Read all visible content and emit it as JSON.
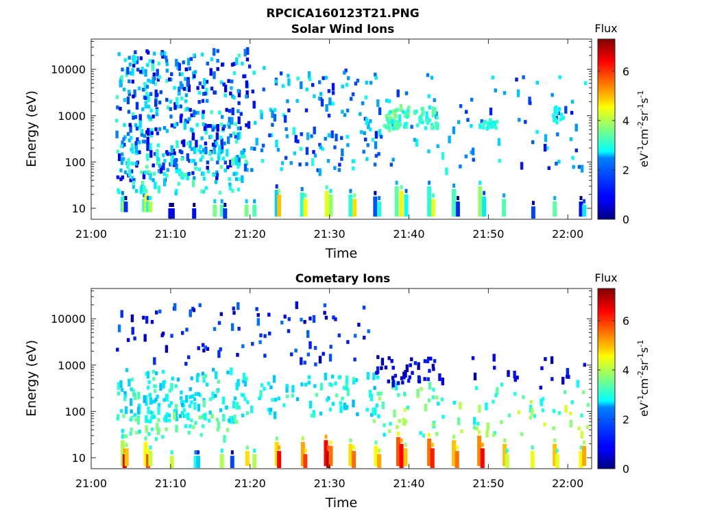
{
  "figure_title": "RPCICA160123T21.PNG",
  "chart_data": [
    {
      "type": "heatmap",
      "title": "Solar Wind Ions",
      "xlabel": "Time",
      "ylabel": "Energy (eV)",
      "x_tick_labels": [
        "21:00",
        "21:10",
        "21:20",
        "21:30",
        "21:40",
        "21:50",
        "22:00"
      ],
      "x_ticks_min": [
        0,
        10,
        20,
        30,
        40,
        50,
        60
      ],
      "xlim_min": [
        0,
        63
      ],
      "yscale": "log",
      "y_tick_labels": [
        "10",
        "100",
        "1000",
        "10000"
      ],
      "y_ticks": [
        10,
        100,
        1000,
        10000
      ],
      "ylim": [
        5.8,
        45000
      ],
      "colorbar": {
        "title": "Flux",
        "label": "eV-1cm-2sr-1s-1",
        "range": [
          0,
          7.3
        ],
        "ticks": [
          "0",
          "2",
          "4",
          "6"
        ],
        "colormap": "jet"
      },
      "background": "#ffffff",
      "columns": [
        {
          "t": 3.7,
          "e": [
            10,
            18
          ],
          "v": 3.0
        },
        {
          "t": 3.9,
          "e": [
            10,
            14
          ],
          "v": 4.2
        },
        {
          "t": 4.1,
          "e": [
            10,
            14
          ],
          "v": 1.2
        },
        {
          "t": 6.4,
          "e": [
            10,
            16
          ],
          "v": 3.2
        },
        {
          "t": 6.7,
          "e": [
            10,
            20
          ],
          "v": 4.5
        },
        {
          "t": 6.9,
          "e": [
            10,
            14
          ],
          "v": 2.8
        },
        {
          "t": 7.2,
          "e": [
            10,
            14
          ],
          "v": 4.0
        },
        {
          "t": 9.7,
          "e": [
            7,
            10
          ],
          "v": 1.0
        },
        {
          "t": 10.0,
          "e": [
            7,
            10
          ],
          "v": 0.9
        },
        {
          "t": 12.7,
          "e": [
            7,
            10
          ],
          "v": 1.0
        },
        {
          "t": 15.3,
          "e": [
            8,
            12
          ],
          "v": 3.6
        },
        {
          "t": 16.2,
          "e": [
            8,
            12
          ],
          "v": 3.3
        },
        {
          "t": 16.6,
          "e": [
            7,
            10
          ],
          "v": 1.3
        },
        {
          "t": 19.3,
          "e": [
            8,
            12
          ],
          "v": 3.6
        },
        {
          "t": 20.3,
          "e": [
            8,
            12
          ],
          "v": 3.3
        },
        {
          "t": 23.1,
          "e": [
            8,
            25
          ],
          "v": 2.4
        },
        {
          "t": 23.4,
          "e": [
            8,
            20
          ],
          "v": 5.0
        },
        {
          "t": 26.3,
          "e": [
            8,
            22
          ],
          "v": 3.0
        },
        {
          "t": 26.7,
          "e": [
            8,
            16
          ],
          "v": 4.6
        },
        {
          "t": 29.4,
          "e": [
            8,
            24
          ],
          "v": 4.4
        },
        {
          "t": 29.9,
          "e": [
            8,
            20
          ],
          "v": 3.8
        },
        {
          "t": 32.4,
          "e": [
            8,
            20
          ],
          "v": 3.0
        },
        {
          "t": 32.9,
          "e": [
            8,
            16
          ],
          "v": 4.8
        },
        {
          "t": 35.5,
          "e": [
            8,
            18
          ],
          "v": 1.5
        },
        {
          "t": 36.0,
          "e": [
            8,
            14
          ],
          "v": 3.0
        },
        {
          "t": 38.2,
          "e": [
            8,
            30
          ],
          "v": 3.4
        },
        {
          "t": 38.8,
          "e": [
            8,
            24
          ],
          "v": 4.6
        },
        {
          "t": 39.4,
          "e": [
            8,
            20
          ],
          "v": 2.8
        },
        {
          "t": 42.3,
          "e": [
            8,
            30
          ],
          "v": 3.0
        },
        {
          "t": 42.8,
          "e": [
            8,
            16
          ],
          "v": 4.4
        },
        {
          "t": 45.4,
          "e": [
            8,
            26
          ],
          "v": 3.2
        },
        {
          "t": 45.9,
          "e": [
            8,
            14
          ],
          "v": 1.2
        },
        {
          "t": 48.7,
          "e": [
            8,
            30
          ],
          "v": 3.8
        },
        {
          "t": 49.2,
          "e": [
            8,
            18
          ],
          "v": 2.6
        },
        {
          "t": 51.7,
          "e": [
            8,
            16
          ],
          "v": 3.3
        },
        {
          "t": 55.4,
          "e": [
            7,
            11
          ],
          "v": 1.4
        },
        {
          "t": 58.1,
          "e": [
            8,
            14
          ],
          "v": 3.4
        },
        {
          "t": 61.4,
          "e": [
            8,
            14
          ],
          "v": 1.0
        },
        {
          "t": 61.8,
          "e": [
            8,
            12
          ],
          "v": 2.6
        }
      ],
      "clusters": [
        {
          "t": [
            3.0,
            19.5
          ],
          "e": [
            40,
            25000
          ],
          "n": 430,
          "v": [
            0.6,
            3.2
          ]
        },
        {
          "t": [
            3.0,
            19.5
          ],
          "e": [
            20,
            200
          ],
          "n": 80,
          "v": [
            2.2,
            3.4
          ]
        },
        {
          "t": [
            19.5,
            38.0
          ],
          "e": [
            60,
            12000
          ],
          "n": 150,
          "v": [
            1.0,
            3.0
          ]
        },
        {
          "t": [
            38.0,
            62.5
          ],
          "e": [
            60,
            8000
          ],
          "n": 70,
          "v": [
            1.0,
            3.0
          ]
        },
        {
          "t": [
            36.5,
            40.0
          ],
          "e": [
            500,
            1500
          ],
          "n": 45,
          "v": [
            2.6,
            3.8
          ]
        },
        {
          "t": [
            40.5,
            43.5
          ],
          "e": [
            500,
            1400
          ],
          "n": 25,
          "v": [
            2.6,
            3.5
          ]
        },
        {
          "t": [
            48.5,
            51.5
          ],
          "e": [
            500,
            800
          ],
          "n": 15,
          "v": [
            2.6,
            3.2
          ]
        },
        {
          "t": [
            58.0,
            59.5
          ],
          "e": [
            700,
            1400
          ],
          "n": 12,
          "v": [
            2.6,
            3.0
          ]
        }
      ]
    },
    {
      "type": "heatmap",
      "title": "Cometary Ions",
      "xlabel": "Time",
      "ylabel": "Energy (eV)",
      "x_tick_labels": [
        "21:00",
        "21:10",
        "21:20",
        "21:30",
        "21:40",
        "21:50",
        "22:00"
      ],
      "x_ticks_min": [
        0,
        10,
        20,
        30,
        40,
        50,
        60
      ],
      "xlim_min": [
        0,
        63
      ],
      "yscale": "log",
      "y_tick_labels": [
        "10",
        "100",
        "1000",
        "10000"
      ],
      "y_ticks": [
        10,
        100,
        1000,
        10000
      ],
      "ylim": [
        5.8,
        45000
      ],
      "colorbar": {
        "title": "Flux",
        "label": "eV-1cm-2sr-1s-1",
        "range": [
          0,
          7.3
        ],
        "ticks": [
          "0",
          "2",
          "4",
          "6"
        ],
        "colormap": "jet"
      },
      "background": "#ffffff",
      "columns": [
        {
          "t": 3.7,
          "e": [
            8,
            24
          ],
          "v": 4.0
        },
        {
          "t": 3.95,
          "e": [
            6,
            12
          ],
          "v": 6.6
        },
        {
          "t": 4.2,
          "e": [
            8,
            16
          ],
          "v": 5.0
        },
        {
          "t": 6.6,
          "e": [
            8,
            22
          ],
          "v": 4.6
        },
        {
          "t": 6.9,
          "e": [
            6,
            12
          ],
          "v": 5.8
        },
        {
          "t": 7.2,
          "e": [
            8,
            14
          ],
          "v": 4.2
        },
        {
          "t": 9.9,
          "e": [
            6,
            11
          ],
          "v": 4.2
        },
        {
          "t": 12.9,
          "e": [
            6,
            11
          ],
          "v": 3.0
        },
        {
          "t": 13.2,
          "e": [
            6,
            11
          ],
          "v": 2.4
        },
        {
          "t": 16.2,
          "e": [
            6,
            12
          ],
          "v": 4.0
        },
        {
          "t": 17.5,
          "e": [
            6,
            11
          ],
          "v": 1.4
        },
        {
          "t": 19.4,
          "e": [
            8,
            14
          ],
          "v": 4.8
        },
        {
          "t": 20.3,
          "e": [
            6,
            12
          ],
          "v": 4.0
        },
        {
          "t": 23.1,
          "e": [
            8,
            22
          ],
          "v": 4.8
        },
        {
          "t": 23.4,
          "e": [
            6,
            14
          ],
          "v": 6.4
        },
        {
          "t": 26.4,
          "e": [
            8,
            22
          ],
          "v": 5.2
        },
        {
          "t": 26.7,
          "e": [
            6,
            12
          ],
          "v": 6.0
        },
        {
          "t": 29.3,
          "e": [
            8,
            24
          ],
          "v": 6.4
        },
        {
          "t": 29.6,
          "e": [
            6,
            14
          ],
          "v": 6.9
        },
        {
          "t": 29.9,
          "e": [
            8,
            18
          ],
          "v": 5.6
        },
        {
          "t": 32.4,
          "e": [
            8,
            20
          ],
          "v": 4.8
        },
        {
          "t": 32.8,
          "e": [
            6,
            14
          ],
          "v": 5.6
        },
        {
          "t": 35.6,
          "e": [
            8,
            18
          ],
          "v": 4.6
        },
        {
          "t": 36.0,
          "e": [
            6,
            12
          ],
          "v": 5.2
        },
        {
          "t": 38.4,
          "e": [
            8,
            28
          ],
          "v": 5.8
        },
        {
          "t": 38.8,
          "e": [
            6,
            20
          ],
          "v": 6.4
        },
        {
          "t": 39.3,
          "e": [
            8,
            16
          ],
          "v": 5.0
        },
        {
          "t": 42.3,
          "e": [
            8,
            26
          ],
          "v": 5.6
        },
        {
          "t": 42.7,
          "e": [
            6,
            16
          ],
          "v": 6.2
        },
        {
          "t": 45.4,
          "e": [
            8,
            24
          ],
          "v": 5.0
        },
        {
          "t": 45.8,
          "e": [
            6,
            14
          ],
          "v": 5.6
        },
        {
          "t": 48.6,
          "e": [
            8,
            30
          ],
          "v": 5.4
        },
        {
          "t": 49.0,
          "e": [
            6,
            16
          ],
          "v": 6.4
        },
        {
          "t": 51.8,
          "e": [
            8,
            20
          ],
          "v": 5.0
        },
        {
          "t": 52.1,
          "e": [
            6,
            12
          ],
          "v": 4.2
        },
        {
          "t": 55.3,
          "e": [
            6,
            14
          ],
          "v": 4.4
        },
        {
          "t": 58.1,
          "e": [
            8,
            20
          ],
          "v": 5.0
        },
        {
          "t": 58.4,
          "e": [
            6,
            12
          ],
          "v": 4.4
        },
        {
          "t": 61.4,
          "e": [
            6,
            14
          ],
          "v": 4.6
        },
        {
          "t": 61.8,
          "e": [
            8,
            18
          ],
          "v": 5.2
        }
      ],
      "clusters": [
        {
          "t": [
            3.0,
            19.0
          ],
          "e": [
            60,
            800
          ],
          "n": 140,
          "v": [
            2.2,
            3.4
          ]
        },
        {
          "t": [
            3.0,
            19.0
          ],
          "e": [
            25,
            80
          ],
          "n": 50,
          "v": [
            2.6,
            3.8
          ]
        },
        {
          "t": [
            3.0,
            35.0
          ],
          "e": [
            1000,
            20000
          ],
          "n": 90,
          "v": [
            0.4,
            1.8
          ]
        },
        {
          "t": [
            19.0,
            38.0
          ],
          "e": [
            80,
            600
          ],
          "n": 80,
          "v": [
            2.2,
            3.4
          ]
        },
        {
          "t": [
            35.0,
            62.5
          ],
          "e": [
            30,
            400
          ],
          "n": 90,
          "v": [
            2.6,
            4.4
          ]
        },
        {
          "t": [
            35.5,
            44.0
          ],
          "e": [
            400,
            1500
          ],
          "n": 40,
          "v": [
            0.3,
            1.2
          ]
        },
        {
          "t": [
            44.0,
            62.5
          ],
          "e": [
            300,
            1500
          ],
          "n": 20,
          "v": [
            0.3,
            1.2
          ]
        }
      ]
    }
  ]
}
